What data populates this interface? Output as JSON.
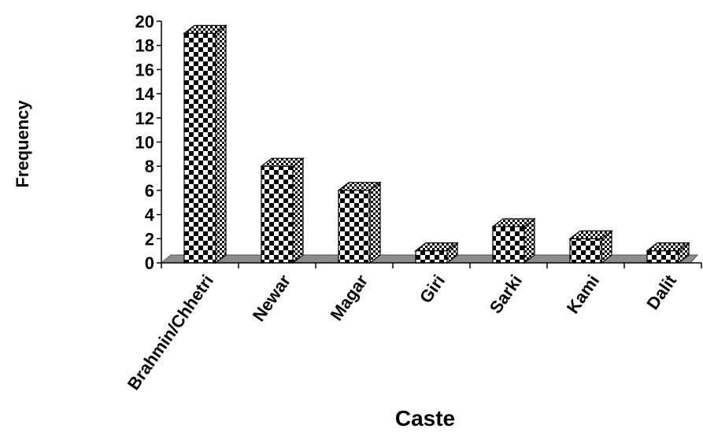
{
  "chart_data": {
    "type": "bar",
    "title": "",
    "xlabel": "Caste",
    "ylabel": "Frequency",
    "categories": [
      "Brahmin/Chhetri",
      "Newar",
      "Magar",
      "Giri",
      "Sarki",
      "Kami",
      "Dalit"
    ],
    "values": [
      19,
      8,
      6,
      1,
      3,
      2,
      1
    ],
    "ylim": [
      0,
      20
    ],
    "yticks": [
      "0",
      "2",
      "4",
      "6",
      "8",
      "10",
      "12",
      "14",
      "16",
      "18",
      "20"
    ],
    "grid": false,
    "bar_style": "3d-checkered",
    "colors": {
      "bar_dark": "#000000",
      "bar_light": "#ffffff",
      "floor": "#8c8c8c"
    }
  }
}
